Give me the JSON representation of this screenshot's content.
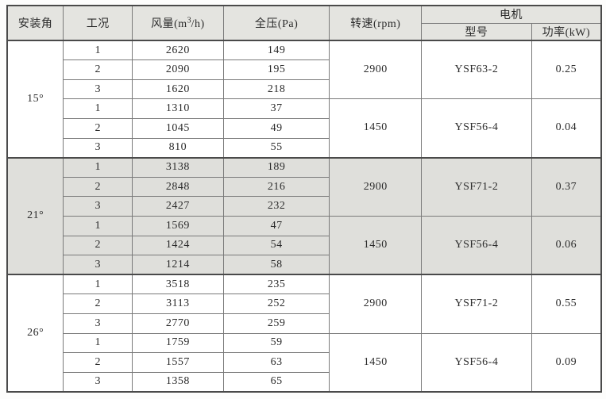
{
  "colors": {
    "header_bg": "#e4e4e0",
    "shaded_bg": "#dfdfdb",
    "border_thin": "#7a7a7a",
    "border_thick": "#4a4a4a",
    "text": "#2b2b2b"
  },
  "table": {
    "headers": {
      "angle": "安装角",
      "condition": "工况",
      "airflow_prefix": "风量(m",
      "airflow_sup": "3",
      "airflow_suffix": "/h)",
      "pressure": "全压(Pa)",
      "speed": "转速(rpm)",
      "motor": "电机",
      "model": "型号",
      "power": "功率(kW)"
    },
    "sections": [
      {
        "angle": "15°",
        "groups": [
          {
            "speed": "2900",
            "model": "YSF63-2",
            "power": "0.25",
            "rows": [
              {
                "condition": "1",
                "airflow": "2620",
                "pressure": "149"
              },
              {
                "condition": "2",
                "airflow": "2090",
                "pressure": "195"
              },
              {
                "condition": "3",
                "airflow": "1620",
                "pressure": "218"
              }
            ]
          },
          {
            "speed": "1450",
            "model": "YSF56-4",
            "power": "0.04",
            "rows": [
              {
                "condition": "1",
                "airflow": "1310",
                "pressure": "37"
              },
              {
                "condition": "2",
                "airflow": "1045",
                "pressure": "49"
              },
              {
                "condition": "3",
                "airflow": "810",
                "pressure": "55"
              }
            ]
          }
        ]
      },
      {
        "angle": "21°",
        "groups": [
          {
            "speed": "2900",
            "model": "YSF71-2",
            "power": "0.37",
            "rows": [
              {
                "condition": "1",
                "airflow": "3138",
                "pressure": "189"
              },
              {
                "condition": "2",
                "airflow": "2848",
                "pressure": "216"
              },
              {
                "condition": "3",
                "airflow": "2427",
                "pressure": "232"
              }
            ]
          },
          {
            "speed": "1450",
            "model": "YSF56-4",
            "power": "0.06",
            "rows": [
              {
                "condition": "1",
                "airflow": "1569",
                "pressure": "47"
              },
              {
                "condition": "2",
                "airflow": "1424",
                "pressure": "54"
              },
              {
                "condition": "3",
                "airflow": "1214",
                "pressure": "58"
              }
            ]
          }
        ]
      },
      {
        "angle": "26°",
        "groups": [
          {
            "speed": "2900",
            "model": "YSF71-2",
            "power": "0.55",
            "rows": [
              {
                "condition": "1",
                "airflow": "3518",
                "pressure": "235"
              },
              {
                "condition": "2",
                "airflow": "3113",
                "pressure": "252"
              },
              {
                "condition": "3",
                "airflow": "2770",
                "pressure": "259"
              }
            ]
          },
          {
            "speed": "1450",
            "model": "YSF56-4",
            "power": "0.09",
            "rows": [
              {
                "condition": "1",
                "airflow": "1759",
                "pressure": "59"
              },
              {
                "condition": "2",
                "airflow": "1557",
                "pressure": "63"
              },
              {
                "condition": "3",
                "airflow": "1358",
                "pressure": "65"
              }
            ]
          }
        ]
      }
    ]
  }
}
